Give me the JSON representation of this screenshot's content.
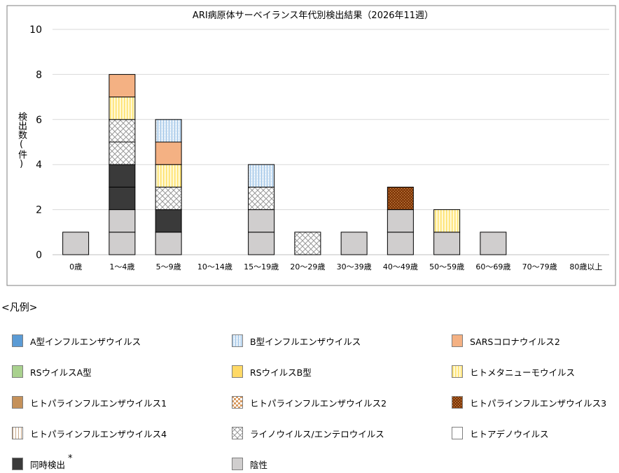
{
  "chart_data": {
    "type": "bar",
    "stacked": true,
    "title": "ARI病原体サーベイランス年代別検出結果（2026年11週）",
    "ylabel": "検出数(件)",
    "xlabel": "",
    "ylim": [
      0,
      10
    ],
    "yticks": [
      0,
      2,
      4,
      6,
      8,
      10
    ],
    "grid": true,
    "categories": [
      "0歳",
      "1～4歳",
      "5～9歳",
      "10～14歳",
      "15～19歳",
      "20～29歳",
      "30～39歳",
      "40～49歳",
      "50～59歳",
      "60～69歳",
      "70～79歳",
      "80歳以上"
    ],
    "series": [
      {
        "name": "陰性",
        "key": "neg",
        "color": "#d0cece",
        "values": [
          1,
          2,
          1,
          0,
          2,
          0,
          1,
          2,
          1,
          1,
          0,
          0
        ]
      },
      {
        "name": "同時検出",
        "key": "multi",
        "color": "#3a3a3a",
        "values": [
          0,
          2,
          1,
          0,
          0,
          0,
          0,
          0,
          0,
          0,
          0,
          0
        ]
      },
      {
        "name": "ライノウイルス/エンテロウイルス",
        "key": "rhino",
        "color": "#ffffff",
        "values": [
          0,
          2,
          1,
          0,
          1,
          1,
          0,
          0,
          0,
          0,
          0,
          0
        ]
      },
      {
        "name": "ヒトメタニューモウイルス",
        "key": "hmpv",
        "color": "#fff2a8",
        "values": [
          0,
          1,
          1,
          0,
          0,
          0,
          0,
          0,
          1,
          0,
          0,
          0
        ]
      },
      {
        "name": "SARSコロナウイルス2",
        "key": "sars",
        "color": "#f4b183",
        "values": [
          0,
          1,
          1,
          0,
          0,
          0,
          0,
          0,
          0,
          0,
          0,
          0
        ]
      },
      {
        "name": "B型インフルエンザウイルス",
        "key": "fluB",
        "color": "#deebf7",
        "values": [
          0,
          0,
          1,
          0,
          1,
          0,
          0,
          0,
          0,
          0,
          0,
          0
        ]
      },
      {
        "name": "ヒトパラインフルエンザウイルス3",
        "key": "hpiv3",
        "color": "#843c0c",
        "values": [
          0,
          0,
          0,
          0,
          0,
          0,
          0,
          1,
          0,
          0,
          0,
          0
        ]
      }
    ]
  },
  "legend": {
    "title": "<凡例>",
    "note_mark": "*",
    "items": [
      {
        "label": "A型インフルエンザウイルス",
        "key": "fluA",
        "color": "#5b9bd5"
      },
      {
        "label": "B型インフルエンザウイルス",
        "key": "fluB",
        "color": "#deebf7"
      },
      {
        "label": "SARSコロナウイルス2",
        "key": "sars",
        "color": "#f4b183"
      },
      {
        "label": "RSウイルスA型",
        "key": "rsvA",
        "color": "#a9d18e"
      },
      {
        "label": "RSウイルスB型",
        "key": "rsvB",
        "color": "#ffd966"
      },
      {
        "label": "ヒトメタニューモウイルス",
        "key": "hmpv",
        "color": "#fff2a8"
      },
      {
        "label": "ヒトパラインフルエンザウイルス1",
        "key": "hpiv1",
        "color": "#c5915a"
      },
      {
        "label": "ヒトパラインフルエンザウイルス2",
        "key": "hpiv2",
        "color": "#d89a60"
      },
      {
        "label": "ヒトパラインフルエンザウイルス3",
        "key": "hpiv3",
        "color": "#843c0c"
      },
      {
        "label": "ヒトパラインフルエンザウイルス4",
        "key": "hpiv4",
        "color": "#c8a888"
      },
      {
        "label": "ライノウイルス/エンテロウイルス",
        "key": "rhino",
        "color": "#ffffff"
      },
      {
        "label": "ヒトアデノウイルス",
        "key": "adeno",
        "color": "#ffffff"
      },
      {
        "label": "同時検出",
        "key": "multi",
        "color": "#3a3a3a"
      },
      {
        "label": "陰性",
        "key": "neg",
        "color": "#d0cece"
      }
    ]
  }
}
